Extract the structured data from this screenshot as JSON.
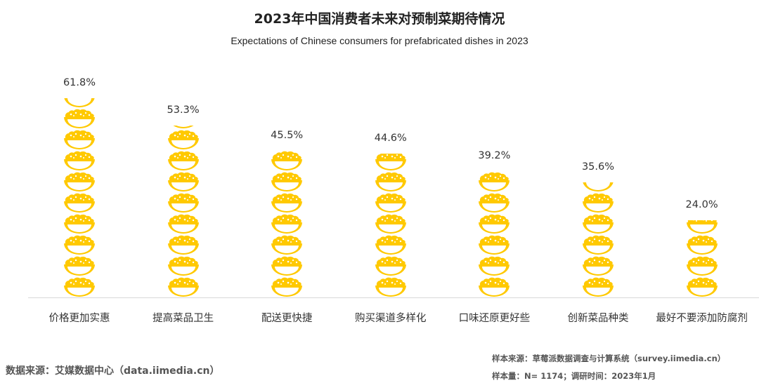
{
  "title": "2023年中国消费者未来对预制菜期待情况",
  "subtitle": "Expectations of Chinese consumers for prefabricated dishes in 2023",
  "chart_data": {
    "type": "bar",
    "style": "pictogram",
    "icon": "food-bowl-icon",
    "color": "#FFC900",
    "categories": [
      "价格更加实惠",
      "提高菜品卫生",
      "配送更快捷",
      "购买渠道多样化",
      "口味还原更好些",
      "创新菜品种类",
      "最好不要添加防腐剂"
    ],
    "values": [
      61.8,
      53.3,
      45.5,
      44.6,
      39.2,
      35.6,
      24.0
    ],
    "data_labels": [
      "61.8%",
      "53.3%",
      "45.5%",
      "44.6%",
      "39.2%",
      "35.6%",
      "24.0%"
    ],
    "ylim": [
      0,
      62
    ],
    "grid": false
  },
  "footer": {
    "source": "数据来源：艾媒数据中心（data.iimedia.cn）",
    "sample_source": "样本来源：草莓派数据调查与计算系统（survey.iimedia.cn）",
    "sample_size": "样本量：N= 1174；调研时间：2023年1月"
  }
}
